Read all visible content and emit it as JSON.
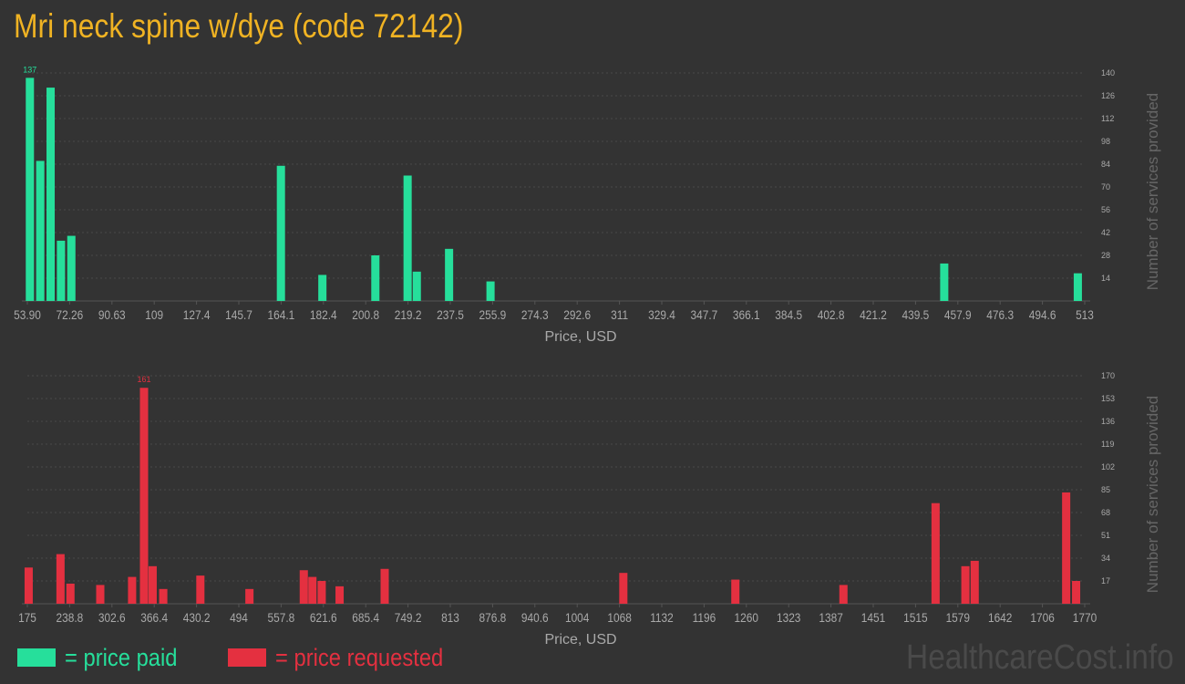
{
  "title": "Mri neck spine w/dye (code 72142)",
  "watermark": "HealthcareCost.info",
  "legend": {
    "paid_label": "= price paid",
    "requested_label": "= price requested"
  },
  "colors": {
    "background": "#333333",
    "title": "#f0b323",
    "paid": "#26df9b",
    "requested": "#e43040",
    "axis_text": "#a9a9a9",
    "grid": "#4a4a4a"
  },
  "chart_data": [
    {
      "type": "bar",
      "id": "paid",
      "xlabel": "Price, USD",
      "ylabel": "Number of services provided",
      "ylim": [
        0,
        140
      ],
      "yticks": [
        "14",
        "28",
        "42",
        "56",
        "70",
        "84",
        "98",
        "112",
        "126",
        "140"
      ],
      "xticks": [
        "53.90",
        "72.26",
        "90.63",
        "109",
        "127.4",
        "145.7",
        "164.1",
        "182.4",
        "200.8",
        "219.2",
        "237.5",
        "255.9",
        "274.3",
        "292.6",
        "311",
        "329.4",
        "347.7",
        "366.1",
        "384.5",
        "402.8",
        "421.2",
        "439.5",
        "457.9",
        "476.3",
        "494.6",
        "513"
      ],
      "xlim": [
        53.9,
        513
      ],
      "grid": true,
      "peak_label": "137",
      "bars": [
        {
          "x": 55,
          "y": 137
        },
        {
          "x": 59.5,
          "y": 86
        },
        {
          "x": 64,
          "y": 131
        },
        {
          "x": 68.5,
          "y": 37
        },
        {
          "x": 73,
          "y": 40
        },
        {
          "x": 164,
          "y": 83
        },
        {
          "x": 182,
          "y": 16
        },
        {
          "x": 205,
          "y": 28
        },
        {
          "x": 219,
          "y": 77
        },
        {
          "x": 223,
          "y": 18
        },
        {
          "x": 237,
          "y": 32
        },
        {
          "x": 255,
          "y": 12
        },
        {
          "x": 452,
          "y": 23
        },
        {
          "x": 510,
          "y": 17
        }
      ]
    },
    {
      "type": "bar",
      "id": "requested",
      "xlabel": "Price, USD",
      "ylabel": "Number of services provided",
      "ylim": [
        0,
        170
      ],
      "yticks": [
        "17",
        "34",
        "51",
        "68",
        "85",
        "102",
        "119",
        "136",
        "153",
        "170"
      ],
      "xticks": [
        "175",
        "238.8",
        "302.6",
        "366.4",
        "430.2",
        "494",
        "557.8",
        "621.6",
        "685.4",
        "749.2",
        "813",
        "876.8",
        "940.6",
        "1004",
        "1068",
        "1132",
        "1196",
        "1260",
        "1323",
        "1387",
        "1451",
        "1515",
        "1579",
        "1642",
        "1706",
        "1770"
      ],
      "xlim": [
        175,
        1770
      ],
      "grid": true,
      "peak_label": "161",
      "bars": [
        {
          "x": 177,
          "y": 27
        },
        {
          "x": 225,
          "y": 37
        },
        {
          "x": 240,
          "y": 15
        },
        {
          "x": 285,
          "y": 14
        },
        {
          "x": 333,
          "y": 20
        },
        {
          "x": 351,
          "y": 161
        },
        {
          "x": 364,
          "y": 28
        },
        {
          "x": 380,
          "y": 11
        },
        {
          "x": 436,
          "y": 21
        },
        {
          "x": 510,
          "y": 11
        },
        {
          "x": 592,
          "y": 25
        },
        {
          "x": 605,
          "y": 20
        },
        {
          "x": 619,
          "y": 17
        },
        {
          "x": 646,
          "y": 13
        },
        {
          "x": 714,
          "y": 26
        },
        {
          "x": 1074,
          "y": 23
        },
        {
          "x": 1243,
          "y": 18
        },
        {
          "x": 1406,
          "y": 14
        },
        {
          "x": 1545,
          "y": 75
        },
        {
          "x": 1590,
          "y": 28
        },
        {
          "x": 1604,
          "y": 32
        },
        {
          "x": 1742,
          "y": 83
        },
        {
          "x": 1757,
          "y": 17
        }
      ]
    }
  ]
}
